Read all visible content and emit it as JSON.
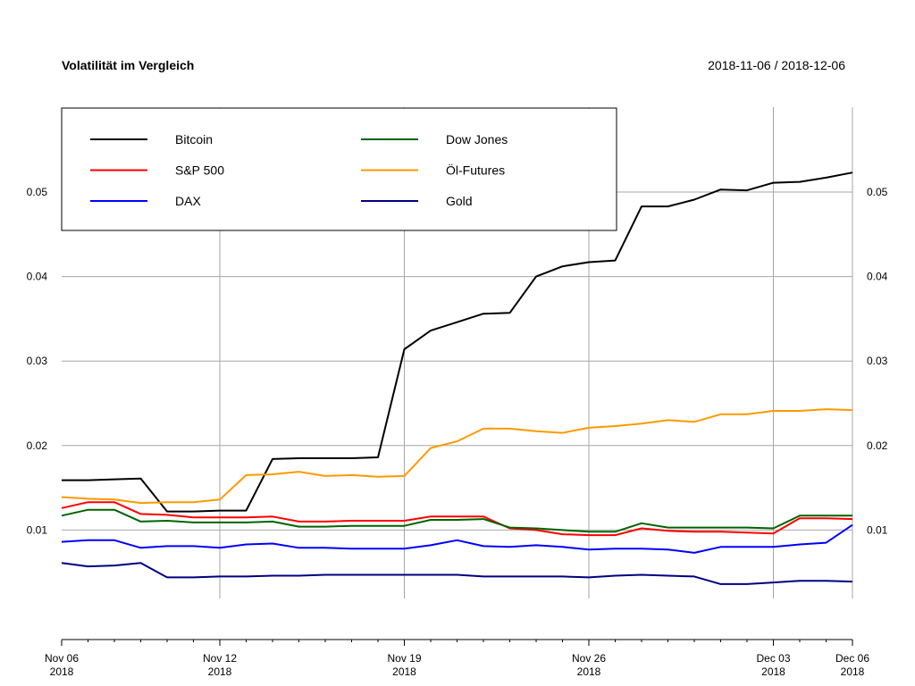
{
  "chart_data": {
    "type": "line",
    "title": "Volatilität im Vergleich",
    "date_range": "2018-11-06 / 2018-12-06",
    "xlim": [
      "2018-11-06",
      "2018-12-06"
    ],
    "ylim": [
      0.0,
      0.06
    ],
    "yticks": [
      0.01,
      0.02,
      0.03,
      0.04,
      0.05
    ],
    "ytick_labels": [
      "0.01",
      "0.02",
      "0.03",
      "0.04",
      "0.05"
    ],
    "xticks": [
      {
        "date": "2018-11-06",
        "label": "Nov 06",
        "year": "2018",
        "gridline": false
      },
      {
        "date": "2018-11-12",
        "label": "Nov 12",
        "year": "2018",
        "gridline": true
      },
      {
        "date": "2018-11-19",
        "label": "Nov 19",
        "year": "2018",
        "gridline": true
      },
      {
        "date": "2018-11-26",
        "label": "Nov 26",
        "year": "2018",
        "gridline": true
      },
      {
        "date": "2018-12-03",
        "label": "Dec 03",
        "year": "2018",
        "gridline": true
      },
      {
        "date": "2018-12-06",
        "label": "Dec 06",
        "year": "2018",
        "gridline": true
      }
    ],
    "grid": true,
    "legend_position": "top-left",
    "dates": [
      "2018-11-06",
      "2018-11-07",
      "2018-11-08",
      "2018-11-09",
      "2018-11-10",
      "2018-11-11",
      "2018-11-12",
      "2018-11-13",
      "2018-11-14",
      "2018-11-15",
      "2018-11-16",
      "2018-11-17",
      "2018-11-18",
      "2018-11-19",
      "2018-11-20",
      "2018-11-21",
      "2018-11-22",
      "2018-11-23",
      "2018-11-24",
      "2018-11-25",
      "2018-11-26",
      "2018-11-27",
      "2018-11-28",
      "2018-11-29",
      "2018-11-30",
      "2018-12-01",
      "2018-12-02",
      "2018-12-03",
      "2018-12-04",
      "2018-12-05",
      "2018-12-06"
    ],
    "series": [
      {
        "name": "Bitcoin",
        "color": "#000000",
        "values": [
          0.0159,
          0.0159,
          0.016,
          0.0161,
          0.0122,
          0.0122,
          0.0123,
          0.0123,
          0.0184,
          0.0185,
          0.0185,
          0.0185,
          0.0186,
          0.0314,
          0.0336,
          0.0346,
          0.0356,
          0.0357,
          0.04,
          0.0412,
          0.0417,
          0.0419,
          0.0483,
          0.0483,
          0.0491,
          0.0503,
          0.0502,
          0.0511,
          0.0512,
          0.0517,
          0.0523
        ]
      },
      {
        "name": "S&P 500",
        "color": "#ff0000",
        "values": [
          0.0126,
          0.0133,
          0.0133,
          0.0119,
          0.0118,
          0.0115,
          0.0115,
          0.0115,
          0.0116,
          0.011,
          0.011,
          0.0111,
          0.0111,
          0.0111,
          0.0116,
          0.0116,
          0.0116,
          0.0102,
          0.01,
          0.0095,
          0.0094,
          0.0094,
          0.0102,
          0.0099,
          0.0098,
          0.0098,
          0.0097,
          0.0096,
          0.0114,
          0.0114,
          0.0113
        ]
      },
      {
        "name": "DAX",
        "color": "#0000ff",
        "values": [
          0.0086,
          0.0088,
          0.0088,
          0.0079,
          0.0081,
          0.0081,
          0.0079,
          0.0083,
          0.0084,
          0.0079,
          0.0079,
          0.0078,
          0.0078,
          0.0078,
          0.0082,
          0.0088,
          0.0081,
          0.008,
          0.0082,
          0.008,
          0.0077,
          0.0078,
          0.0078,
          0.0077,
          0.0073,
          0.008,
          0.008,
          0.008,
          0.0083,
          0.0085,
          0.0106
        ]
      },
      {
        "name": "Dow Jones",
        "color": "#006400",
        "values": [
          0.0117,
          0.0124,
          0.0124,
          0.011,
          0.0111,
          0.0109,
          0.0109,
          0.0109,
          0.011,
          0.0104,
          0.0104,
          0.0105,
          0.0105,
          0.0105,
          0.0112,
          0.0112,
          0.0113,
          0.0103,
          0.0102,
          0.01,
          0.0098,
          0.0098,
          0.0108,
          0.0103,
          0.0103,
          0.0103,
          0.0103,
          0.0102,
          0.0117,
          0.0117,
          0.0117
        ]
      },
      {
        "name": "Öl-Futures",
        "color": "#ff9900",
        "values": [
          0.0139,
          0.0137,
          0.0136,
          0.0132,
          0.0133,
          0.0133,
          0.0136,
          0.0165,
          0.0166,
          0.0169,
          0.0164,
          0.0165,
          0.0163,
          0.0164,
          0.0197,
          0.0205,
          0.022,
          0.022,
          0.0217,
          0.0215,
          0.0221,
          0.0223,
          0.0226,
          0.023,
          0.0228,
          0.0237,
          0.0237,
          0.0241,
          0.0241,
          0.0243,
          0.0242
        ]
      },
      {
        "name": "Gold",
        "color": "#000080",
        "values": [
          0.0061,
          0.0057,
          0.0058,
          0.0061,
          0.0044,
          0.0044,
          0.0045,
          0.0045,
          0.0046,
          0.0046,
          0.0047,
          0.0047,
          0.0047,
          0.0047,
          0.0047,
          0.0047,
          0.0045,
          0.0045,
          0.0045,
          0.0045,
          0.0044,
          0.0046,
          0.0047,
          0.0046,
          0.0045,
          0.0036,
          0.0036,
          0.0038,
          0.004,
          0.004,
          0.0039
        ]
      }
    ]
  }
}
